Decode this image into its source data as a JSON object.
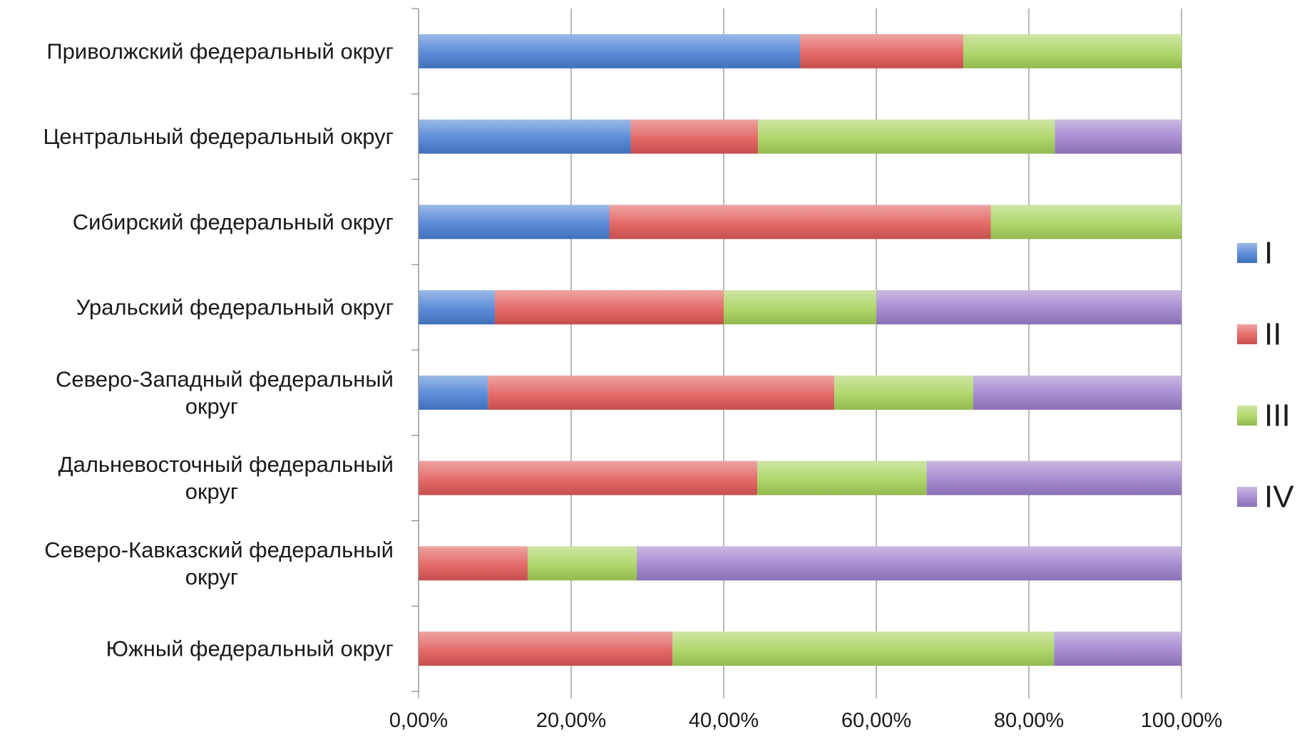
{
  "chart_data": {
    "type": "bar",
    "orientation": "horizontal",
    "stacked": "percent",
    "categories": [
      "Приволжский федеральный округ",
      "Центральный федеральный округ",
      "Сибирский федеральный округ",
      "Уральский федеральный округ",
      "Северо-Западный федеральный округ",
      "Дальневосточный федеральный округ",
      "Северо-Кавказский федеральный округ",
      "Южный федеральный округ"
    ],
    "category_lines": [
      [
        "Приволжский федеральный округ"
      ],
      [
        "Центральный федеральный округ"
      ],
      [
        "Сибирский федеральный округ"
      ],
      [
        "Уральский федеральный округ"
      ],
      [
        "Северо-Западный федеральный",
        "округ"
      ],
      [
        "Дальневосточный федеральный",
        "округ"
      ],
      [
        "Северо-Кавказский федеральный",
        "округ"
      ],
      [
        "Южный федеральный округ"
      ]
    ],
    "series": [
      {
        "name": "I",
        "color": "#4a7fd4",
        "values": [
          50.0,
          27.8,
          25.0,
          10.0,
          9.1,
          0,
          0,
          0
        ]
      },
      {
        "name": "II",
        "color": "#e05a57",
        "values": [
          21.4,
          16.7,
          50.0,
          30.0,
          45.4,
          44.4,
          14.3,
          33.3
        ]
      },
      {
        "name": "III",
        "color": "#a6d25a",
        "values": [
          28.6,
          38.9,
          25.0,
          20.0,
          18.2,
          22.2,
          14.3,
          50.0
        ]
      },
      {
        "name": "IV",
        "color": "#9d7fcc",
        "values": [
          0,
          16.6,
          0,
          40.0,
          27.3,
          33.4,
          71.4,
          16.7
        ]
      }
    ],
    "xlim": [
      0,
      100
    ],
    "xticks": [
      0,
      20,
      40,
      60,
      80,
      100
    ],
    "xtick_labels": [
      "0,00%",
      "20,00%",
      "40,00%",
      "60,00%",
      "80,00%",
      "100,00%"
    ],
    "grid": "vertical",
    "legend": "right"
  }
}
